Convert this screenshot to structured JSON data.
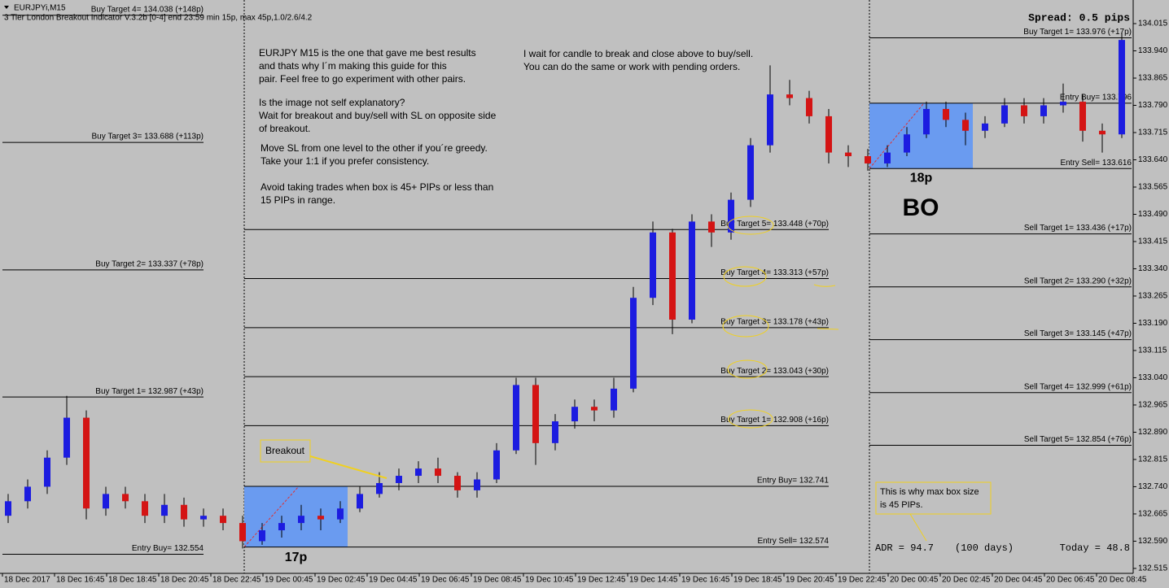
{
  "chart_data": {
    "type": "candlestick",
    "symbol": "EURJPYi,M15",
    "indicator": "3 Tier London Breakout Indicator V.3.2b [0-4] end 23:59 min 15p, max 45p,1.0/2.6/4.2",
    "spread": "Spread: 0.5 pips",
    "ylim": [
      132.479,
      134.08
    ],
    "yticks": [
      134.015,
      {
        "value": 133.94,
        "label": "133.940"
      },
      133.865,
      {
        "value": 133.79,
        "label": "133.790"
      },
      133.715,
      {
        "value": 133.64,
        "label": "133.640"
      },
      133.565,
      {
        "value": 133.49,
        "label": "133.490"
      },
      133.415,
      {
        "value": 133.34,
        "label": "133.340"
      },
      133.265,
      {
        "value": 133.19,
        "label": "133.190"
      },
      133.115,
      {
        "value": 133.04,
        "label": "133.040"
      },
      132.965,
      {
        "value": 132.89,
        "label": "132.890"
      },
      132.815,
      {
        "value": 132.74,
        "label": "132.740"
      },
      132.665,
      {
        "value": 132.59,
        "label": "132.590"
      },
      132.515
    ],
    "time_labels": [
      "18 Dec 2017",
      "18 Dec 16:45",
      "18 Dec 18:45",
      "18 Dec 20:45",
      "18 Dec 22:45",
      "19 Dec 00:45",
      "19 Dec 02:45",
      "19 Dec 04:45",
      "19 Dec 06:45",
      "19 Dec 08:45",
      "19 Dec 10:45",
      "19 Dec 12:45",
      "19 Dec 14:45",
      "19 Dec 16:45",
      "19 Dec 18:45",
      "19 Dec 20:45",
      "19 Dec 22:45",
      "20 Dec 00:45",
      "20 Dec 02:45",
      "20 Dec 04:45",
      "20 Dec 06:45",
      "20 Dec 08:45"
    ],
    "up_color": "#1c1ce0",
    "down_color": "#d41414",
    "candles": [
      [
        132.66,
        132.72,
        132.64,
        132.7
      ],
      [
        132.7,
        132.76,
        132.68,
        132.74
      ],
      [
        132.74,
        132.84,
        132.72,
        132.82
      ],
      [
        132.82,
        132.99,
        132.8,
        132.93
      ],
      [
        132.93,
        132.95,
        132.65,
        132.68
      ],
      [
        132.68,
        132.74,
        132.66,
        132.72
      ],
      [
        132.72,
        132.74,
        132.68,
        132.7
      ],
      [
        132.7,
        132.72,
        132.64,
        132.66
      ],
      [
        132.66,
        132.72,
        132.64,
        132.69
      ],
      [
        132.69,
        132.71,
        132.63,
        132.65
      ],
      [
        132.65,
        132.68,
        132.63,
        132.66
      ],
      [
        132.66,
        132.68,
        132.62,
        132.64
      ],
      [
        132.64,
        132.66,
        132.57,
        132.59
      ],
      [
        132.59,
        132.64,
        132.58,
        132.62
      ],
      [
        132.62,
        132.66,
        132.6,
        132.64
      ],
      [
        132.64,
        132.69,
        132.62,
        132.66
      ],
      [
        132.66,
        132.68,
        132.62,
        132.65
      ],
      [
        132.65,
        132.7,
        132.64,
        132.68
      ],
      [
        132.68,
        132.74,
        132.67,
        132.72
      ],
      [
        132.72,
        132.78,
        132.71,
        132.75
      ],
      [
        132.75,
        132.79,
        132.73,
        132.77
      ],
      [
        132.77,
        132.81,
        132.75,
        132.79
      ],
      [
        132.79,
        132.82,
        132.75,
        132.77
      ],
      [
        132.77,
        132.78,
        132.71,
        132.73
      ],
      [
        132.73,
        132.78,
        132.71,
        132.76
      ],
      [
        132.76,
        132.86,
        132.75,
        132.84
      ],
      [
        132.84,
        133.04,
        132.83,
        133.02
      ],
      [
        133.02,
        133.04,
        132.8,
        132.86
      ],
      [
        132.86,
        132.94,
        132.84,
        132.92
      ],
      [
        132.92,
        132.98,
        132.9,
        132.96
      ],
      [
        132.96,
        132.98,
        132.92,
        132.95
      ],
      [
        132.95,
        133.04,
        132.93,
        133.01
      ],
      [
        133.01,
        133.29,
        133.0,
        133.26
      ],
      [
        133.26,
        133.47,
        133.24,
        133.44
      ],
      [
        133.44,
        133.45,
        133.16,
        133.2
      ],
      [
        133.2,
        133.49,
        133.19,
        133.47
      ],
      [
        133.47,
        133.49,
        133.4,
        133.44
      ],
      [
        133.44,
        133.55,
        133.42,
        133.53
      ],
      [
        133.53,
        133.7,
        133.51,
        133.68
      ],
      [
        133.68,
        133.9,
        133.66,
        133.82
      ],
      [
        133.82,
        133.86,
        133.79,
        133.81
      ],
      [
        133.81,
        133.83,
        133.74,
        133.76
      ],
      [
        133.76,
        133.78,
        133.63,
        133.66
      ],
      [
        133.66,
        133.68,
        133.62,
        133.65
      ],
      [
        133.65,
        133.67,
        133.61,
        133.63
      ],
      [
        133.63,
        133.68,
        133.62,
        133.66
      ],
      [
        133.66,
        133.73,
        133.65,
        133.71
      ],
      [
        133.71,
        133.8,
        133.7,
        133.78
      ],
      [
        133.78,
        133.8,
        133.73,
        133.75
      ],
      [
        133.75,
        133.77,
        133.68,
        133.72
      ],
      [
        133.72,
        133.76,
        133.7,
        133.74
      ],
      [
        133.74,
        133.81,
        133.73,
        133.79
      ],
      [
        133.79,
        133.81,
        133.74,
        133.76
      ],
      [
        133.76,
        133.81,
        133.74,
        133.79
      ],
      [
        133.79,
        133.85,
        133.77,
        133.8
      ],
      [
        133.8,
        133.82,
        133.69,
        133.72
      ],
      [
        133.72,
        133.74,
        133.66,
        133.71
      ],
      [
        133.71,
        133.99,
        133.7,
        133.97
      ]
    ],
    "sessions": [
      {
        "levels": [
          {
            "text": "Buy Target 4= 134.038  (+148p)",
            "price": 134.038
          },
          {
            "text": "Buy Target 3= 133.688  (+113p)",
            "price": 133.688
          },
          {
            "text": "Buy Target 2= 133.337  (+78p)",
            "price": 133.337
          },
          {
            "text": "Buy Target 1= 132.987  (+43p)",
            "price": 132.987
          },
          {
            "text": "Entry Buy= 132.554",
            "price": 132.554
          }
        ]
      },
      {
        "levels": [
          {
            "text": "Buy Target 5= 133.448  (+70p)",
            "price": 133.448
          },
          {
            "text": "Buy Target 4= 133.313  (+57p)",
            "price": 133.313
          },
          {
            "text": "Buy Target 3= 133.178  (+43p)",
            "price": 133.178
          },
          {
            "text": "Buy Target 2= 133.043  (+30p)",
            "price": 133.043
          },
          {
            "text": "Buy Target 1= 132.908  (+16p)",
            "price": 132.908
          },
          {
            "text": "Entry Buy= 132.741",
            "price": 132.741
          },
          {
            "text": "Entry Sell= 132.574",
            "price": 132.574
          }
        ]
      },
      {
        "levels": [
          {
            "text": "Buy Target 1= 133.976  (+17p)",
            "price": 133.976
          },
          {
            "text": "Entry Buy= 133.796",
            "price": 133.796
          },
          {
            "text": "Entry Sell= 133.616",
            "price": 133.616
          },
          {
            "text": "Sell Target 1= 133.436  (+17p)",
            "price": 133.436
          },
          {
            "text": "Sell Target 2= 133.290  (+32p)",
            "price": 133.29
          },
          {
            "text": "Sell Target 3= 133.145  (+47p)",
            "price": 133.145
          },
          {
            "text": "Sell Target 4= 132.999  (+61p)",
            "price": 132.999
          },
          {
            "text": "Sell Target 5= 132.854  (+76p)",
            "price": 132.854
          }
        ]
      }
    ],
    "boxes": [
      {
        "label": "17p",
        "color": "#6a9bf0"
      },
      {
        "label": "18p",
        "color": "#6a9bf0"
      }
    ],
    "bo_label": "BO",
    "breakout_note": "Breakout",
    "box_note": [
      "This is why max box size",
      "is 45 PIPs."
    ],
    "adr": "ADR = 94.7",
    "adr_period": "(100 days)",
    "today": "Today = 48.8",
    "notes": [
      "EURJPY M15 is the one that gave me best results",
      "and thats why I´m making this guide for this",
      "pair. Feel free to go experiment with other pairs.",
      "Is the image not self explanatory?",
      "Wait for breakout and buy/sell with SL on opposite side",
      "of breakout.",
      "Move SL from one level to the other if you´re greedy.",
      "Take your 1:1 if you prefer consistency.",
      "Avoid taking trades when box is 45+ PIPs or less than",
      "15 PIPs in range.",
      "I wait for candle to break and close above to buy/sell.",
      "You can do the same or work with pending orders."
    ]
  }
}
